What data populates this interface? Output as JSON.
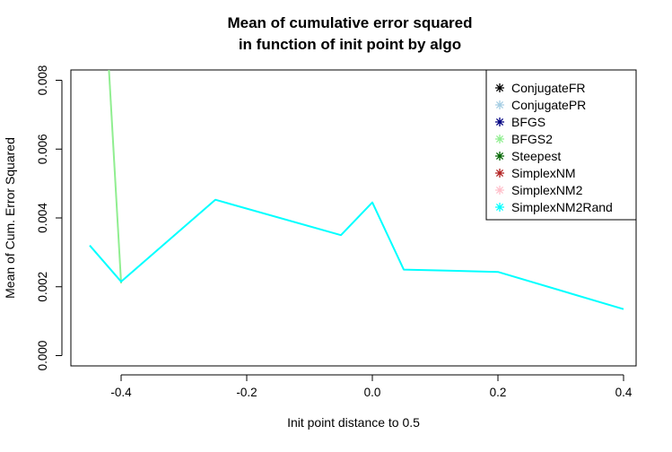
{
  "chart_data": {
    "type": "line",
    "title_lines": [
      "Mean of cumulative error squared",
      "in function of init point by algo"
    ],
    "xlabel": "Init point distance to  0.5",
    "ylabel": "Mean of Cum. Error Squared",
    "xlim": [
      -0.48,
      0.42
    ],
    "ylim": [
      -0.0003,
      0.0083
    ],
    "x_ticks": [
      -0.4,
      -0.2,
      0.0,
      0.2,
      0.4
    ],
    "x_tick_labels": [
      "-0.4",
      "-0.2",
      "0.0",
      "0.2",
      "0.4"
    ],
    "y_ticks": [
      0.0,
      0.002,
      0.004,
      0.006,
      0.008
    ],
    "y_tick_labels": [
      "0.000",
      "0.002",
      "0.004",
      "0.006",
      "0.008"
    ],
    "grid": false,
    "legend_position": "top-right",
    "series": [
      {
        "name": "ConjugateFR",
        "color": "#000000",
        "x": [],
        "y": []
      },
      {
        "name": "ConjugatePR",
        "color": "#a6cee3",
        "x": [],
        "y": []
      },
      {
        "name": "BFGS",
        "color": "#000080",
        "x": [],
        "y": []
      },
      {
        "name": "BFGS2",
        "color": "#90ee90",
        "x": [
          -0.42,
          -0.4
        ],
        "y": [
          0.0085,
          0.0021
        ]
      },
      {
        "name": "Steepest",
        "color": "#006400",
        "x": [],
        "y": []
      },
      {
        "name": "SimplexNM",
        "color": "#b22222",
        "x": [],
        "y": []
      },
      {
        "name": "SimplexNM2",
        "color": "#ffc0cb",
        "x": [],
        "y": []
      },
      {
        "name": "SimplexNM2Rand",
        "color": "#00ffff",
        "x": [
          -0.45,
          -0.4,
          -0.25,
          -0.05,
          0.0,
          0.05,
          0.2,
          0.4
        ],
        "y": [
          0.0032,
          0.00215,
          0.00453,
          0.0035,
          0.00445,
          0.0025,
          0.00243,
          0.00135
        ]
      }
    ]
  }
}
